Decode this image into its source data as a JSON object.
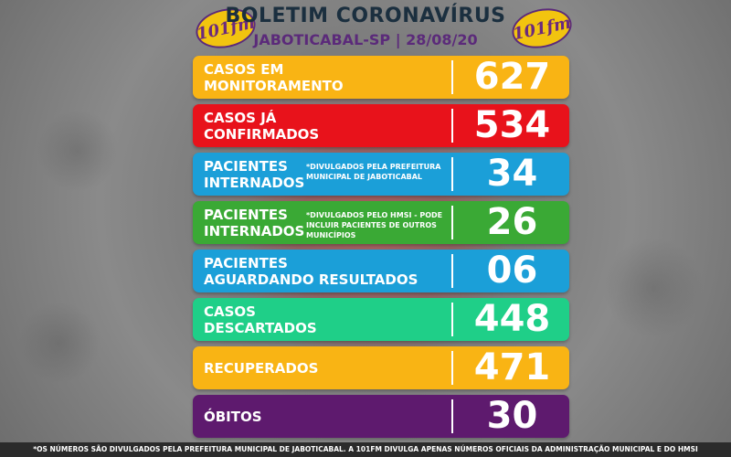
{
  "header": {
    "title": "BOLETIM CORONAVÍRUS",
    "subtitle": "JABOTICABAL-SP | 28/08/20",
    "logo_text": "101fm"
  },
  "rows": [
    {
      "label1": "CASOS EM",
      "label2": "MONITORAMENTO",
      "note": "",
      "value": "627",
      "color": "#f9b414"
    },
    {
      "label1": "CASOS JÁ",
      "label2": "CONFIRMADOS",
      "note": "",
      "value": "534",
      "color": "#e8121b"
    },
    {
      "label1": "PACIENTES",
      "label2": "INTERNADOS",
      "note": "*DIVULGADOS PELA PREFEITURA MUNICIPAL DE JABOTICABAL",
      "value": "34",
      "color": "#1b9fd8"
    },
    {
      "label1": "PACIENTES",
      "label2": "INTERNADOS",
      "note": "*DIVULGADOS PELO HMSI - PODE INCLUIR PACIENTES DE OUTROS MUNICÍPIOS",
      "value": "26",
      "color": "#3aa935"
    },
    {
      "label1": "PACIENTES",
      "label2": "AGUARDANDO RESULTADOS",
      "note": "",
      "value": "06",
      "color": "#1b9fd8"
    },
    {
      "label1": "CASOS",
      "label2": "DESCARTADOS",
      "note": "",
      "value": "448",
      "color": "#1fcf88"
    },
    {
      "label1": "RECUPERADOS",
      "label2": "",
      "note": "",
      "value": "471",
      "color": "#f9b414"
    },
    {
      "label1": "ÓBITOS",
      "label2": "",
      "note": "",
      "value": "30",
      "color": "#5e1a6e"
    }
  ],
  "footer": {
    "text": "*OS NÚMEROS SÃO DIVULGADOS PELA PREFEITURA MUNICIPAL DE JABOTICABAL. A 101FM DIVULGA APENAS NÚMEROS OFICIAIS DA ADMINISTRAÇÃO MUNICIPAL E DO HMSI"
  }
}
